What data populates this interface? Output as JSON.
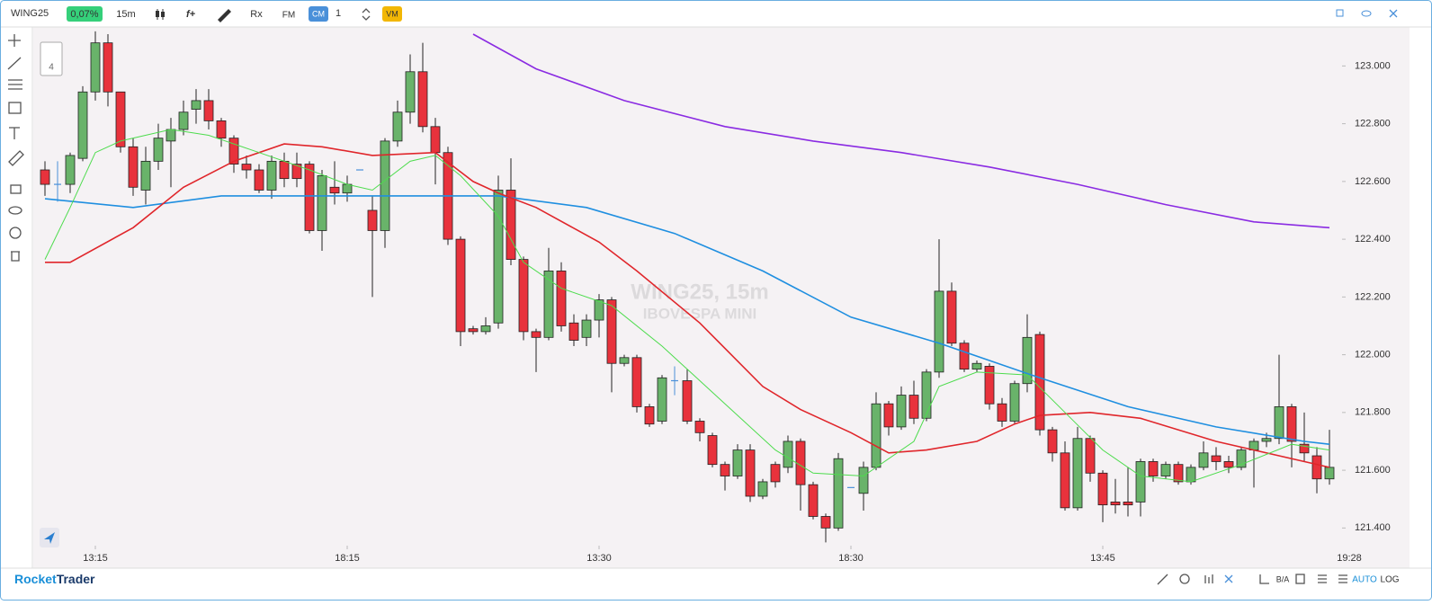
{
  "toolbar": {
    "symbol": "WING25",
    "change": "0,07%",
    "timeframe": "15m",
    "tools": [
      "f+",
      "Rx",
      "FM"
    ],
    "cm": "CM",
    "quantity": "1",
    "vm": "VM"
  },
  "side_panel": {
    "count": "4"
  },
  "footer": {
    "brand_a": "Rocket",
    "brand_b": "Trader",
    "ba": "B/A",
    "auto": "AUTO",
    "log": "LOG"
  },
  "chart_data": {
    "type": "candlestick",
    "watermark": "WING25, 15m",
    "watermark_sub": "IBOVESPA MINI",
    "current_time": "19:28",
    "categories": [
      null,
      null,
      null,
      null,
      "13:15",
      null,
      null,
      null,
      null,
      null,
      null,
      null,
      null,
      null,
      null,
      null,
      null,
      null,
      null,
      null,
      null,
      null,
      null,
      null,
      "18:15",
      null,
      null,
      null,
      null,
      null,
      null,
      null,
      null,
      null,
      null,
      null,
      null,
      null,
      null,
      null,
      null,
      null,
      null,
      null,
      "13:30",
      null,
      null,
      null,
      null,
      null,
      null,
      null,
      null,
      null,
      null,
      null,
      null,
      null,
      null,
      null,
      null,
      null,
      null,
      null,
      "18:30",
      null,
      null,
      null,
      null,
      null,
      null,
      null,
      null,
      null,
      null,
      null,
      null,
      null,
      null,
      null,
      null,
      null,
      null,
      null,
      "13:45",
      null,
      null,
      null,
      null,
      null,
      null,
      null,
      null,
      null,
      null,
      null,
      null,
      null,
      null,
      null,
      null,
      null,
      null
    ],
    "open": [
      122.64,
      122.59,
      122.59,
      122.68,
      122.91,
      123.08,
      122.91,
      122.72,
      122.57,
      122.67,
      122.74,
      122.78,
      122.85,
      122.88,
      122.81,
      122.75,
      122.66,
      122.64,
      122.57,
      122.67,
      122.66,
      122.66,
      122.43,
      122.58,
      122.56,
      122.64,
      122.5,
      122.43,
      122.74,
      122.84,
      122.98,
      122.79,
      122.7,
      122.4,
      122.09,
      122.08,
      122.11,
      122.57,
      122.33,
      122.08,
      122.06,
      122.29,
      122.11,
      122.06,
      122.12,
      122.19,
      121.97,
      121.99,
      121.82,
      121.77,
      121.91,
      121.91,
      121.77,
      121.72,
      121.62,
      121.58,
      121.67,
      121.51,
      121.62,
      121.61,
      121.7,
      121.55,
      121.44,
      121.4,
      121.54,
      121.52,
      121.61,
      121.83,
      121.75,
      121.86,
      121.78,
      121.94,
      122.22,
      122.04,
      121.95,
      121.96,
      121.83,
      121.77,
      121.9,
      122.07,
      121.74,
      121.66,
      121.47,
      121.71,
      121.59,
      121.49,
      121.49,
      121.49,
      121.63,
      121.58,
      121.62,
      121.56,
      121.61,
      121.65,
      121.63,
      121.61,
      121.67,
      121.7,
      121.71,
      121.82,
      121.69,
      121.65,
      121.57
    ],
    "high": [
      122.67,
      122.67,
      122.7,
      122.93,
      123.12,
      123.11,
      122.91,
      122.75,
      122.72,
      122.8,
      122.82,
      122.88,
      122.92,
      122.92,
      122.82,
      122.76,
      122.69,
      122.66,
      122.69,
      122.7,
      122.7,
      122.67,
      122.64,
      122.67,
      122.62,
      122.64,
      122.55,
      122.75,
      122.88,
      123.04,
      123.08,
      122.82,
      122.72,
      122.41,
      122.1,
      122.13,
      122.62,
      122.68,
      122.34,
      122.09,
      122.37,
      122.32,
      122.14,
      122.14,
      122.21,
      122.2,
      122.0,
      122.0,
      121.83,
      121.93,
      121.96,
      121.95,
      121.78,
      121.73,
      121.63,
      121.69,
      121.69,
      121.57,
      121.63,
      121.72,
      121.71,
      121.56,
      121.45,
      121.66,
      121.54,
      121.63,
      121.87,
      121.84,
      121.89,
      121.91,
      121.95,
      122.4,
      122.25,
      122.05,
      121.98,
      121.97,
      121.85,
      121.91,
      122.14,
      122.08,
      121.75,
      121.7,
      121.75,
      121.72,
      121.6,
      121.57,
      121.61,
      121.64,
      121.64,
      121.63,
      121.63,
      121.62,
      121.7,
      121.68,
      121.65,
      121.68,
      121.71,
      121.73,
      122.0,
      121.83,
      121.8,
      121.68,
      121.74
    ],
    "low": [
      122.55,
      122.53,
      122.56,
      122.67,
      122.88,
      122.86,
      122.7,
      122.55,
      122.52,
      122.64,
      122.58,
      122.76,
      122.8,
      122.78,
      122.72,
      122.63,
      122.61,
      122.56,
      122.54,
      122.58,
      122.58,
      122.42,
      122.36,
      122.52,
      122.53,
      122.64,
      122.2,
      122.37,
      122.72,
      122.8,
      122.77,
      122.59,
      122.38,
      122.03,
      122.07,
      122.07,
      122.09,
      122.31,
      122.05,
      121.94,
      122.05,
      122.08,
      122.03,
      122.03,
      122.06,
      121.87,
      121.96,
      121.8,
      121.75,
      121.76,
      121.86,
      121.76,
      121.7,
      121.61,
      121.53,
      121.57,
      121.49,
      121.5,
      121.54,
      121.59,
      121.46,
      121.43,
      121.35,
      121.39,
      121.54,
      121.46,
      121.6,
      121.72,
      121.74,
      121.76,
      121.77,
      121.92,
      122.03,
      121.94,
      121.94,
      121.81,
      121.75,
      121.76,
      121.87,
      121.72,
      121.63,
      121.46,
      121.46,
      121.56,
      121.42,
      121.45,
      121.44,
      121.44,
      121.56,
      121.57,
      121.55,
      121.55,
      121.6,
      121.6,
      121.59,
      121.6,
      121.54,
      121.68,
      121.69,
      121.61,
      121.63,
      121.52,
      121.55
    ],
    "close": [
      122.59,
      122.59,
      122.69,
      122.91,
      123.08,
      122.91,
      122.72,
      122.58,
      122.67,
      122.75,
      122.78,
      122.84,
      122.88,
      122.81,
      122.75,
      122.66,
      122.64,
      122.57,
      122.67,
      122.61,
      122.61,
      122.43,
      122.62,
      122.56,
      122.59,
      122.64,
      122.43,
      122.74,
      122.84,
      122.98,
      122.79,
      122.7,
      122.4,
      122.08,
      122.08,
      122.1,
      122.57,
      122.33,
      122.08,
      122.06,
      122.29,
      122.1,
      122.05,
      122.12,
      122.19,
      121.97,
      121.99,
      121.82,
      121.76,
      121.92,
      121.91,
      121.77,
      121.73,
      121.62,
      121.58,
      121.67,
      121.51,
      121.56,
      121.56,
      121.7,
      121.55,
      121.44,
      121.4,
      121.64,
      121.54,
      121.61,
      121.83,
      121.75,
      121.86,
      121.78,
      121.94,
      122.22,
      122.04,
      121.95,
      121.97,
      121.83,
      121.77,
      121.9,
      122.06,
      121.74,
      121.66,
      121.47,
      121.71,
      121.59,
      121.48,
      121.48,
      121.48,
      121.63,
      121.58,
      121.62,
      121.56,
      121.61,
      121.66,
      121.63,
      121.61,
      121.67,
      121.7,
      121.71,
      121.82,
      121.7,
      121.66,
      121.57,
      121.61
    ],
    "up_color": "#69b36a",
    "down_color": "#e8323c",
    "flat_color": "#4a90d9",
    "lines": [
      {
        "color": "#8a2be2",
        "x": [
          34,
          39,
          46,
          54,
          61,
          68,
          75,
          82,
          89,
          96,
          102
        ],
        "values": [
          123.11,
          122.99,
          122.88,
          122.79,
          122.74,
          122.7,
          122.65,
          122.59,
          122.52,
          122.46,
          122.44
        ]
      },
      {
        "color": "#1f8fe0",
        "x": [
          0,
          7,
          14,
          25,
          36,
          43,
          50,
          57,
          64,
          71,
          79,
          86,
          93,
          100,
          102
        ],
        "values": [
          122.54,
          122.51,
          122.55,
          122.55,
          122.55,
          122.51,
          122.42,
          122.29,
          122.13,
          122.04,
          121.92,
          121.82,
          121.75,
          121.7,
          121.69
        ]
      },
      {
        "color": "#e0262b",
        "x": [
          0,
          2,
          7,
          11,
          15,
          19,
          22,
          26,
          31,
          34,
          36,
          39,
          44,
          47,
          52,
          57,
          60,
          64,
          67,
          70,
          74,
          77,
          79,
          83,
          87,
          93,
          98,
          102
        ],
        "values": [
          122.32,
          122.32,
          122.44,
          122.58,
          122.67,
          122.73,
          122.72,
          122.69,
          122.7,
          122.6,
          122.56,
          122.51,
          122.39,
          122.29,
          122.11,
          121.89,
          121.81,
          121.73,
          121.66,
          121.67,
          121.7,
          121.76,
          121.79,
          121.8,
          121.78,
          121.7,
          121.65,
          121.61
        ]
      },
      {
        "color": "#4ddc4d",
        "x": [
          0,
          2,
          4,
          6,
          10,
          13,
          17,
          21,
          24,
          26,
          29,
          31,
          33,
          36,
          38,
          41,
          45,
          49,
          54,
          58,
          61,
          65,
          69,
          71,
          74,
          78,
          81,
          84,
          87,
          91,
          95,
          99,
          102
        ],
        "values": [
          122.33,
          122.51,
          122.7,
          122.74,
          122.78,
          122.76,
          122.7,
          122.64,
          122.59,
          122.57,
          122.67,
          122.69,
          122.62,
          122.48,
          122.32,
          122.23,
          122.17,
          122.03,
          121.83,
          121.67,
          121.59,
          121.58,
          121.7,
          121.89,
          121.94,
          121.93,
          121.8,
          121.67,
          121.58,
          121.56,
          121.62,
          121.69,
          121.67
        ]
      }
    ],
    "ylim": [
      121.345,
      123.135
    ],
    "yticks": [
      {
        "value": 121.4,
        "label": "121.400"
      },
      {
        "value": 121.6,
        "label": "121.600"
      },
      {
        "value": 121.8,
        "label": "121.800"
      },
      {
        "value": 122.0,
        "label": "122.000"
      },
      {
        "value": 122.2,
        "label": "122.200"
      },
      {
        "value": 122.4,
        "label": "122.400"
      },
      {
        "value": 122.6,
        "label": "122.600"
      },
      {
        "value": 122.8,
        "label": "122.800"
      },
      {
        "value": 123.0,
        "label": "123.000"
      }
    ],
    "grid": false
  }
}
